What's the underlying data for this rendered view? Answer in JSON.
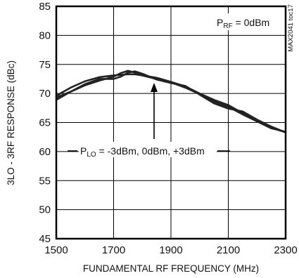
{
  "chart_data": {
    "type": "line",
    "title": "",
    "xlabel": "FUNDAMENTAL RF FREQUENCY (MHz)",
    "ylabel": "3LO - 3RF RESPONSE (dBc)",
    "xlim": [
      1500,
      2300
    ],
    "ylim": [
      45,
      85
    ],
    "x_ticks": [
      1500,
      1700,
      1900,
      2100,
      2300
    ],
    "y_ticks": [
      45,
      50,
      55,
      60,
      65,
      70,
      75,
      80,
      85
    ],
    "x_tick_labels": [
      "1500",
      "1700",
      "1900",
      "2100",
      "2300"
    ],
    "y_tick_labels": [
      "45",
      "50",
      "55",
      "60",
      "65",
      "70",
      "75",
      "80",
      "85"
    ],
    "grid": true,
    "series": [
      {
        "x": [
          1500,
          1550,
          1600,
          1650,
          1700,
          1725,
          1750,
          1775,
          1800,
          1850,
          1900,
          1950,
          2000,
          2050,
          2100,
          2150,
          2200,
          2250,
          2300
        ],
        "y": [
          69.3,
          70.3,
          71.4,
          72.2,
          72.9,
          73.5,
          73.9,
          73.6,
          73.1,
          72.5,
          71.9,
          71.0,
          69.9,
          68.6,
          67.7,
          66.4,
          65.2,
          64.1,
          63.3
        ]
      },
      {
        "x": [
          1500,
          1550,
          1600,
          1650,
          1700,
          1725,
          1750,
          1775,
          1800,
          1850,
          1900,
          1950,
          2000,
          2050,
          2100,
          2150,
          2200,
          2250,
          2300
        ],
        "y": [
          69.6,
          71.0,
          72.1,
          72.8,
          73.1,
          73.2,
          73.3,
          73.3,
          73.1,
          72.7,
          72.0,
          71.2,
          70.0,
          68.9,
          68.0,
          66.6,
          65.2,
          64.0,
          63.4
        ]
      },
      {
        "x": [
          1500,
          1550,
          1600,
          1650,
          1700,
          1725,
          1750,
          1775,
          1800,
          1850,
          1900,
          1950,
          2000,
          2050,
          2100,
          2150,
          2200,
          2250,
          2300
        ],
        "y": [
          68.9,
          70.3,
          71.6,
          72.5,
          72.5,
          72.9,
          73.6,
          73.8,
          73.4,
          72.4,
          71.8,
          71.3,
          69.8,
          68.3,
          67.4,
          66.9,
          65.5,
          64.3,
          63.3
        ]
      }
    ],
    "annotations": {
      "prf_main": "P",
      "prf_sub": "RF",
      "prf_rest": " = 0dBm",
      "plo_main": "P",
      "plo_sub": "LO",
      "plo_rest": " = -3dBm, 0dBm, +3dBm",
      "code": "MAX2041 toc17"
    }
  },
  "colors": {
    "line": "#222222",
    "grid": "#000000",
    "text": "#111111"
  }
}
